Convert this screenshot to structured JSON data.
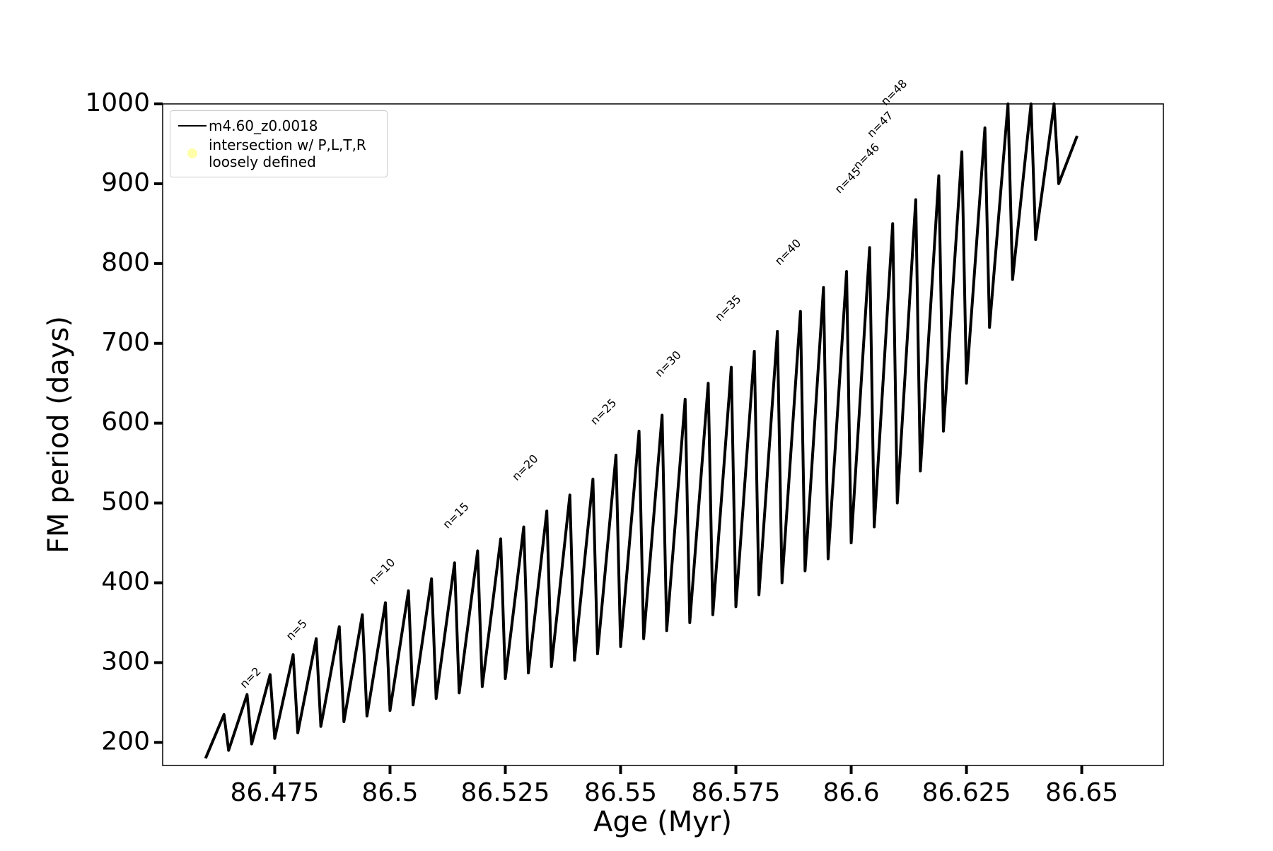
{
  "chart_data": {
    "type": "line",
    "xlabel": "Age (Myr)",
    "ylabel": "FM period (days)",
    "xlim": [
      86.4507,
      86.6677
    ],
    "ylim": [
      171.1,
      1000
    ],
    "xticks": [
      86.475,
      86.5,
      86.525,
      86.55,
      86.575,
      86.6,
      86.625,
      86.65
    ],
    "yticks": [
      200,
      300,
      400,
      500,
      600,
      700,
      800,
      900,
      1000
    ],
    "series": [
      {
        "name": "m4.60_z0.0018",
        "color": "#000000",
        "x": [
          86.46,
          86.464,
          86.465,
          86.469,
          86.47,
          86.474,
          86.475,
          86.479,
          86.48,
          86.484,
          86.485,
          86.489,
          86.49,
          86.494,
          86.495,
          86.499,
          86.5,
          86.504,
          86.505,
          86.509,
          86.51,
          86.514,
          86.515,
          86.519,
          86.52,
          86.524,
          86.525,
          86.529,
          86.53,
          86.534,
          86.535,
          86.539,
          86.54,
          86.544,
          86.545,
          86.549,
          86.55,
          86.554,
          86.555,
          86.559,
          86.56,
          86.564,
          86.565,
          86.569,
          86.57,
          86.574,
          86.575,
          86.579,
          86.58,
          86.584,
          86.585,
          86.589,
          86.59,
          86.594,
          86.595,
          86.599,
          86.6,
          86.604,
          86.605,
          86.609,
          86.61,
          86.614,
          86.615,
          86.619,
          86.62,
          86.624,
          86.625,
          86.629,
          86.63,
          86.634,
          86.635,
          86.639,
          86.64,
          86.644,
          86.645,
          86.649
        ],
        "values": [
          180,
          235,
          190,
          260,
          198,
          285,
          205,
          310,
          212,
          330,
          220,
          345,
          226,
          360,
          233,
          375,
          240,
          390,
          247,
          405,
          255,
          425,
          262,
          440,
          270,
          455,
          280,
          470,
          287,
          490,
          295,
          510,
          303,
          530,
          311,
          560,
          320,
          590,
          330,
          610,
          340,
          630,
          350,
          650,
          360,
          670,
          370,
          690,
          385,
          715,
          400,
          740,
          415,
          770,
          430,
          790,
          450,
          820,
          470,
          850,
          500,
          880,
          540,
          910,
          590,
          940,
          650,
          970,
          720,
          1000,
          780,
          1000,
          830,
          1000,
          900,
          960
        ]
      },
      {
        "name": "intersection w/ P,L,T,R loosely defined",
        "color": "#ffffaa"
      }
    ],
    "annotations": [
      {
        "text": "n=2",
        "x": 86.468,
        "y": 270
      },
      {
        "text": "n=5",
        "x": 86.478,
        "y": 330
      },
      {
        "text": "n=10",
        "x": 86.496,
        "y": 400
      },
      {
        "text": "n=15",
        "x": 86.512,
        "y": 470
      },
      {
        "text": "n=20",
        "x": 86.527,
        "y": 530
      },
      {
        "text": "n=25",
        "x": 86.544,
        "y": 600
      },
      {
        "text": "n=30",
        "x": 86.558,
        "y": 660
      },
      {
        "text": "n=35",
        "x": 86.571,
        "y": 730
      },
      {
        "text": "n=40",
        "x": 86.584,
        "y": 800
      },
      {
        "text": "n=45",
        "x": 86.597,
        "y": 890
      },
      {
        "text": "n=46",
        "x": 86.601,
        "y": 920
      },
      {
        "text": "n=47",
        "x": 86.604,
        "y": 960
      },
      {
        "text": "n=48",
        "x": 86.607,
        "y": 1000
      }
    ]
  }
}
